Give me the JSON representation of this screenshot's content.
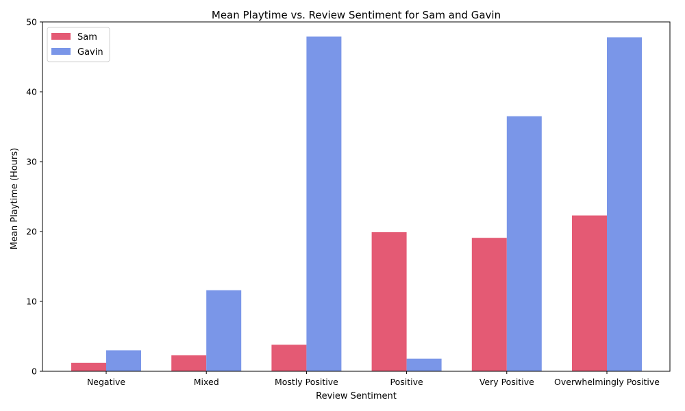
{
  "chart_data": {
    "type": "bar",
    "title": "Mean Playtime vs. Review Sentiment for Sam and Gavin",
    "xlabel": "Review Sentiment",
    "ylabel": "Mean Playtime (Hours)",
    "categories": [
      "Negative",
      "Mixed",
      "Mostly Positive",
      "Positive",
      "Very Positive",
      "Overwhelmingly Positive"
    ],
    "series": [
      {
        "name": "Sam",
        "color": "#e45a74",
        "values": [
          1.2,
          2.3,
          3.8,
          19.9,
          19.1,
          22.3
        ]
      },
      {
        "name": "Gavin",
        "color": "#7a96e8",
        "values": [
          3.0,
          11.6,
          47.9,
          1.8,
          36.5,
          47.8
        ]
      }
    ],
    "ylim": [
      0,
      50
    ],
    "yticks": [
      0,
      10,
      20,
      30,
      40,
      50
    ],
    "grid": false,
    "legend": "top-left"
  }
}
